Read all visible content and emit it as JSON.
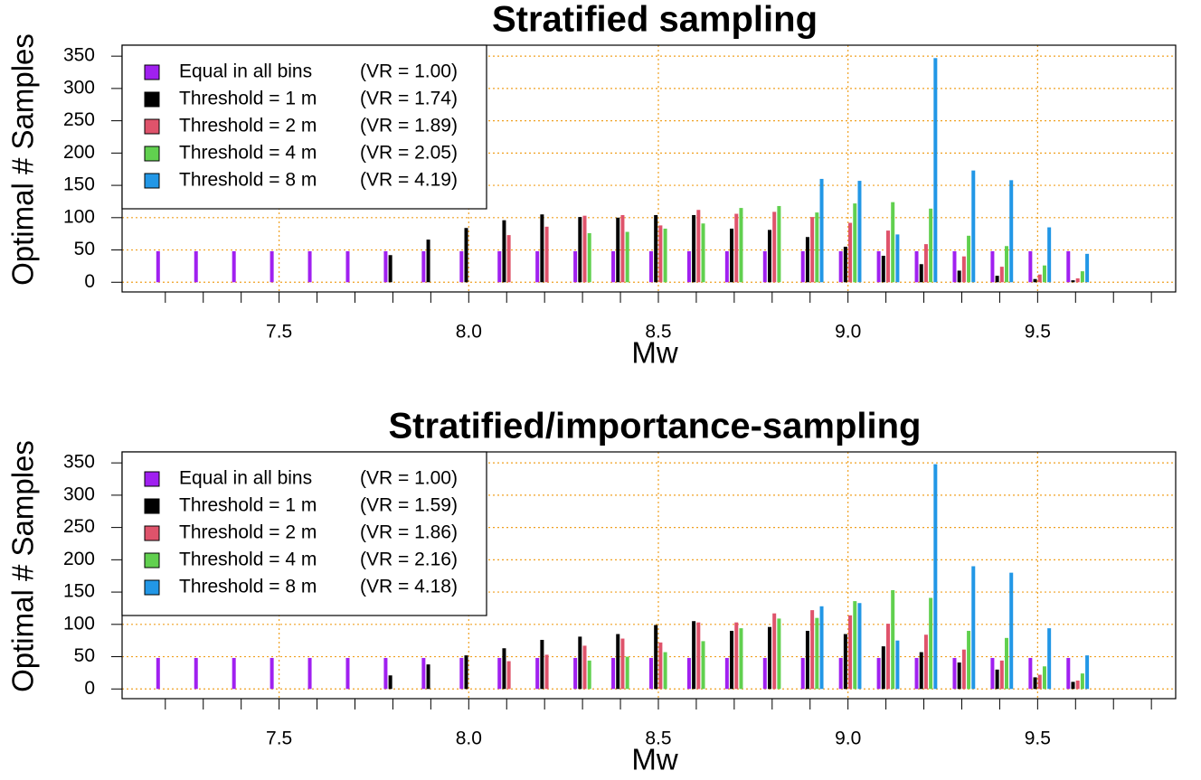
{
  "chart_data": [
    {
      "type": "bar",
      "title": "Stratified sampling",
      "xlabel": "Mw",
      "ylabel": "Optimal # Samples",
      "x": [
        7.2,
        7.3,
        7.4,
        7.5,
        7.6,
        7.7,
        7.8,
        7.9,
        8.0,
        8.1,
        8.2,
        8.3,
        8.4,
        8.5,
        8.6,
        8.7,
        8.8,
        8.9,
        9.0,
        9.1,
        9.2,
        9.3,
        9.4,
        9.5,
        9.6
      ],
      "series": [
        {
          "name": "Equal in all bins",
          "legend_note": "(VR = 1.00)",
          "color": "#a020f0",
          "values": [
            48,
            48,
            48,
            48,
            48,
            48,
            48,
            48,
            48,
            48,
            48,
            48,
            48,
            48,
            48,
            48,
            48,
            48,
            48,
            48,
            48,
            48,
            48,
            48,
            48
          ]
        },
        {
          "name": "Threshold = 1 m",
          "legend_note": "(VR = 1.74)",
          "color": "#000000",
          "values": [
            null,
            null,
            null,
            null,
            null,
            null,
            42,
            66,
            84,
            96,
            105,
            101,
            100,
            104,
            104,
            83,
            81,
            70,
            55,
            41,
            28,
            18,
            10,
            5,
            3
          ]
        },
        {
          "name": "Threshold = 2 m",
          "legend_note": "(VR = 1.89)",
          "color": "#df536b",
          "values": [
            null,
            null,
            null,
            null,
            null,
            null,
            null,
            null,
            null,
            73,
            86,
            103,
            104,
            88,
            112,
            106,
            109,
            101,
            92,
            80,
            59,
            40,
            24,
            12,
            6
          ]
        },
        {
          "name": "Threshold = 4 m",
          "legend_note": "(VR = 2.05)",
          "color": "#61d04f",
          "values": [
            null,
            null,
            null,
            null,
            null,
            null,
            null,
            null,
            null,
            null,
            null,
            76,
            78,
            83,
            91,
            115,
            118,
            108,
            122,
            124,
            114,
            72,
            56,
            26,
            17
          ]
        },
        {
          "name": "Threshold = 8 m",
          "legend_note": "(VR = 4.19)",
          "color": "#2297e6",
          "values": [
            null,
            null,
            null,
            null,
            null,
            null,
            null,
            null,
            null,
            null,
            null,
            null,
            null,
            null,
            null,
            null,
            null,
            160,
            157,
            74,
            347,
            173,
            158,
            85,
            44
          ]
        }
      ],
      "xlim": [
        7.086,
        9.864
      ],
      "ylim": [
        -15,
        367
      ],
      "xticks": [
        7.5,
        {
          "value": 8,
          "label": "8.0"
        },
        8.5,
        {
          "value": 9,
          "label": "9.0"
        },
        9.5
      ],
      "xminorticks": [
        7.2,
        7.3,
        7.4,
        7.5,
        7.6,
        7.7,
        7.8,
        7.9,
        8.0,
        8.1,
        8.2,
        8.3,
        8.4,
        8.5,
        8.6,
        8.7,
        8.8,
        8.9,
        9.0,
        9.1,
        9.2,
        9.3,
        9.4,
        9.5,
        9.6,
        9.7,
        9.8
      ],
      "yticks": [
        0,
        50,
        100,
        150,
        200,
        250,
        300,
        350
      ],
      "grid": true,
      "grid_color": "#f0a020",
      "legend": "top-left"
    },
    {
      "type": "bar",
      "title": "Stratified/importance-sampling",
      "xlabel": "Mw",
      "ylabel": "Optimal # Samples",
      "x": [
        7.2,
        7.3,
        7.4,
        7.5,
        7.6,
        7.7,
        7.8,
        7.9,
        8.0,
        8.1,
        8.2,
        8.3,
        8.4,
        8.5,
        8.6,
        8.7,
        8.8,
        8.9,
        9.0,
        9.1,
        9.2,
        9.3,
        9.4,
        9.5,
        9.6
      ],
      "series": [
        {
          "name": "Equal in all bins",
          "legend_note": "(VR = 1.00)",
          "color": "#a020f0",
          "values": [
            48,
            48,
            48,
            48,
            48,
            48,
            48,
            48,
            48,
            48,
            48,
            48,
            48,
            48,
            48,
            48,
            48,
            48,
            48,
            48,
            48,
            48,
            48,
            48,
            48
          ]
        },
        {
          "name": "Threshold = 1 m",
          "legend_note": "(VR = 1.59)",
          "color": "#000000",
          "values": [
            null,
            null,
            null,
            null,
            null,
            null,
            21,
            38,
            52,
            63,
            76,
            81,
            85,
            99,
            105,
            90,
            96,
            90,
            85,
            66,
            57,
            41,
            30,
            18,
            11
          ]
        },
        {
          "name": "Threshold = 2 m",
          "legend_note": "(VR = 1.86)",
          "color": "#df536b",
          "values": [
            null,
            null,
            null,
            null,
            null,
            null,
            null,
            null,
            null,
            43,
            53,
            67,
            78,
            72,
            103,
            103,
            117,
            122,
            114,
            101,
            84,
            61,
            44,
            22,
            13
          ]
        },
        {
          "name": "Threshold = 4 m",
          "legend_note": "(VR = 2.16)",
          "color": "#61d04f",
          "values": [
            null,
            null,
            null,
            null,
            null,
            null,
            null,
            null,
            null,
            null,
            null,
            44,
            50,
            57,
            74,
            94,
            109,
            110,
            136,
            153,
            141,
            90,
            79,
            35,
            24
          ]
        },
        {
          "name": "Threshold = 8 m",
          "legend_note": "(VR = 4.18)",
          "color": "#2297e6",
          "values": [
            null,
            null,
            null,
            null,
            null,
            null,
            null,
            null,
            null,
            null,
            null,
            null,
            null,
            null,
            null,
            null,
            null,
            128,
            133,
            75,
            348,
            190,
            180,
            94,
            52
          ]
        }
      ],
      "xlim": [
        7.086,
        9.864
      ],
      "ylim": [
        -15,
        367
      ],
      "xticks": [
        7.5,
        {
          "value": 8,
          "label": "8.0"
        },
        8.5,
        {
          "value": 9,
          "label": "9.0"
        },
        9.5
      ],
      "xminorticks": [
        7.2,
        7.3,
        7.4,
        7.5,
        7.6,
        7.7,
        7.8,
        7.9,
        8.0,
        8.1,
        8.2,
        8.3,
        8.4,
        8.5,
        8.6,
        8.7,
        8.8,
        8.9,
        9.0,
        9.1,
        9.2,
        9.3,
        9.4,
        9.5,
        9.6,
        9.7,
        9.8
      ],
      "yticks": [
        0,
        50,
        100,
        150,
        200,
        250,
        300,
        350
      ],
      "grid": true,
      "grid_color": "#f0a020",
      "legend": "top-left"
    }
  ]
}
